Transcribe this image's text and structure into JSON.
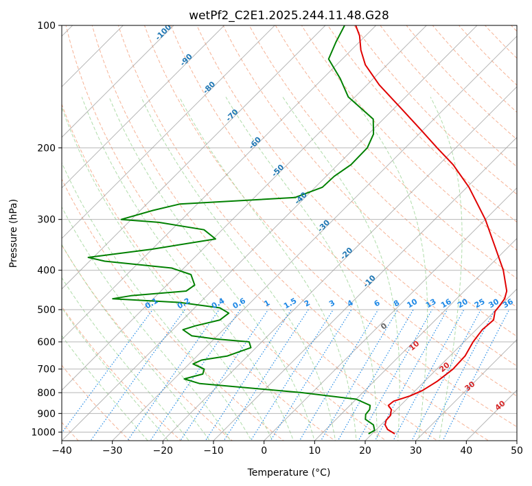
{
  "chart_data": {
    "type": "line",
    "title": "wetPf2_C2E1.2025.244.11.48.G28",
    "xlabel": "Temperature (°C)",
    "ylabel": "Pressure (hPa)",
    "xlim": [
      -40,
      50
    ],
    "ylim": [
      1050,
      100
    ],
    "y_scale": "log",
    "skew_deg": 45,
    "xticks": [
      "−40",
      "−30",
      "−20",
      "−10",
      "0",
      "10",
      "20",
      "30",
      "40",
      "50"
    ],
    "xtick_values": [
      -40,
      -30,
      -20,
      -10,
      0,
      10,
      20,
      30,
      40,
      50
    ],
    "yticks": [
      "100",
      "200",
      "300",
      "400",
      "500",
      "600",
      "700",
      "800",
      "900",
      "1000"
    ],
    "ytick_values": [
      100,
      200,
      300,
      400,
      500,
      600,
      700,
      800,
      900,
      1000
    ],
    "colors": {
      "temperature": "#e00000",
      "dewpoint": "#008000",
      "dry_adiabat": "#f4a582",
      "moist_adiabat": "#a6d8a0",
      "mixing_ratio": "#1e88e5",
      "isotherm": "#9e9e9e",
      "isobar": "#9e9e9e"
    },
    "series": [
      {
        "name": "Temperature",
        "color": "#e00000",
        "points": [
          {
            "p": 1010,
            "t": 24.5
          },
          {
            "p": 985,
            "t": 22.2
          },
          {
            "p": 960,
            "t": 20.8
          },
          {
            "p": 935,
            "t": 20.1
          },
          {
            "p": 910,
            "t": 20.0
          },
          {
            "p": 880,
            "t": 19.0
          },
          {
            "p": 860,
            "t": 17.6
          },
          {
            "p": 840,
            "t": 17.8
          },
          {
            "p": 815,
            "t": 20.0
          },
          {
            "p": 790,
            "t": 21.4
          },
          {
            "p": 750,
            "t": 22.5
          },
          {
            "p": 700,
            "t": 23.2
          },
          {
            "p": 650,
            "t": 23.0
          },
          {
            "p": 600,
            "t": 21.8
          },
          {
            "p": 560,
            "t": 21.2
          },
          {
            "p": 530,
            "t": 21.5
          },
          {
            "p": 505,
            "t": 20.1
          },
          {
            "p": 490,
            "t": 19.9
          },
          {
            "p": 470,
            "t": 19.5
          },
          {
            "p": 450,
            "t": 18.4
          },
          {
            "p": 400,
            "t": 13.6
          },
          {
            "p": 350,
            "t": 7.3
          },
          {
            "p": 300,
            "t": 0.0
          },
          {
            "p": 250,
            "t": -9.6
          },
          {
            "p": 220,
            "t": -17.2
          },
          {
            "p": 200,
            "t": -23.7
          },
          {
            "p": 180,
            "t": -30.7
          },
          {
            "p": 160,
            "t": -38.6
          },
          {
            "p": 140,
            "t": -47.6
          },
          {
            "p": 125,
            "t": -54.3
          },
          {
            "p": 115,
            "t": -58.1
          },
          {
            "p": 106,
            "t": -61.2
          },
          {
            "p": 100,
            "t": -64.0
          }
        ]
      },
      {
        "name": "Dewpoint",
        "color": "#008000",
        "points": [
          {
            "p": 1010,
            "t": 19.3
          },
          {
            "p": 990,
            "t": 19.8
          },
          {
            "p": 960,
            "t": 18.5
          },
          {
            "p": 930,
            "t": 15.8
          },
          {
            "p": 905,
            "t": 14.9
          },
          {
            "p": 880,
            "t": 14.7
          },
          {
            "p": 860,
            "t": 14.0
          },
          {
            "p": 830,
            "t": 10.0
          },
          {
            "p": 800,
            "t": -2.0
          },
          {
            "p": 760,
            "t": -24.0
          },
          {
            "p": 740,
            "t": -28.0
          },
          {
            "p": 720,
            "t": -25.3
          },
          {
            "p": 700,
            "t": -26.0
          },
          {
            "p": 680,
            "t": -29.2
          },
          {
            "p": 665,
            "t": -28.3
          },
          {
            "p": 650,
            "t": -24.0
          },
          {
            "p": 620,
            "t": -21.0
          },
          {
            "p": 600,
            "t": -22.5
          },
          {
            "p": 590,
            "t": -29.8
          },
          {
            "p": 580,
            "t": -35.0
          },
          {
            "p": 560,
            "t": -38.0
          },
          {
            "p": 548,
            "t": -36.3
          },
          {
            "p": 530,
            "t": -32.6
          },
          {
            "p": 510,
            "t": -32.2
          },
          {
            "p": 495,
            "t": -35.0
          },
          {
            "p": 480,
            "t": -44.0
          },
          {
            "p": 470,
            "t": -58.0
          },
          {
            "p": 462,
            "t": -55.0
          },
          {
            "p": 450,
            "t": -45.0
          },
          {
            "p": 435,
            "t": -44.5
          },
          {
            "p": 410,
            "t": -47.3
          },
          {
            "p": 395,
            "t": -52.4
          },
          {
            "p": 380,
            "t": -67.0
          },
          {
            "p": 372,
            "t": -71.0
          },
          {
            "p": 355,
            "t": -60.0
          },
          {
            "p": 335,
            "t": -49.5
          },
          {
            "p": 318,
            "t": -53.6
          },
          {
            "p": 305,
            "t": -64.0
          },
          {
            "p": 300,
            "t": -72.0
          },
          {
            "p": 285,
            "t": -67.5
          },
          {
            "p": 275,
            "t": -63.5
          },
          {
            "p": 265,
            "t": -42.0
          },
          {
            "p": 250,
            "t": -38.6
          },
          {
            "p": 235,
            "t": -38.4
          },
          {
            "p": 220,
            "t": -37.4
          },
          {
            "p": 200,
            "t": -37.5
          },
          {
            "p": 185,
            "t": -39.0
          },
          {
            "p": 170,
            "t": -42.0
          },
          {
            "p": 150,
            "t": -51.3
          },
          {
            "p": 135,
            "t": -56.6
          },
          {
            "p": 121,
            "t": -62.7
          },
          {
            "p": 110,
            "t": -64.6
          },
          {
            "p": 100,
            "t": -66.2
          }
        ]
      }
    ],
    "dry_adiabat_labels": [
      {
        "theta_c": 0,
        "text": "0"
      },
      {
        "theta_c": 10,
        "text": "10"
      },
      {
        "theta_c": 20,
        "text": "20"
      },
      {
        "theta_c": 30,
        "text": "30"
      },
      {
        "theta_c": 40,
        "text": "40"
      }
    ],
    "isotherm_labels": [
      {
        "t": -100,
        "text": "-100"
      },
      {
        "t": -90,
        "text": "-90"
      },
      {
        "t": -80,
        "text": "-80"
      },
      {
        "t": -70,
        "text": "-70"
      },
      {
        "t": -60,
        "text": "-60"
      },
      {
        "t": -50,
        "text": "-50"
      },
      {
        "t": -40,
        "text": "-40"
      },
      {
        "t": -30,
        "text": "-30"
      },
      {
        "t": -20,
        "text": "-20"
      },
      {
        "t": -10,
        "text": "-10"
      }
    ],
    "mixing_ratio_labels": [
      "0.1",
      "0.2",
      "0.4",
      "0.6",
      "1",
      "1.5",
      "2",
      "3",
      "4",
      "6",
      "8",
      "10",
      "13",
      "16",
      "20",
      "25",
      "30",
      "36"
    ],
    "mixing_ratio_values": [
      0.1,
      0.2,
      0.4,
      0.6,
      1,
      1.5,
      2,
      3,
      4,
      6,
      8,
      10,
      13,
      16,
      20,
      25,
      30,
      36
    ]
  }
}
